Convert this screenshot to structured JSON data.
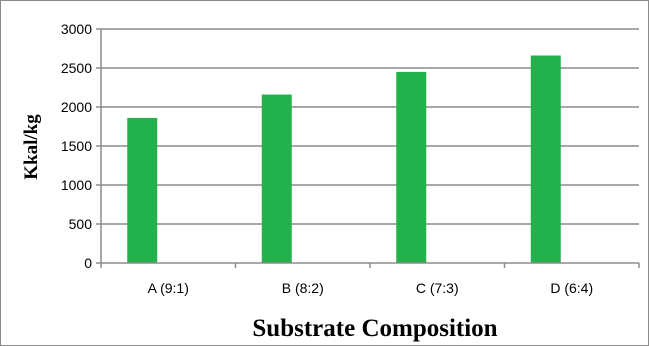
{
  "chart_data": {
    "type": "bar",
    "categories": [
      "A (9:1)",
      "B (8:2)",
      "C (7:3)",
      "D (6:4)"
    ],
    "values": [
      1860,
      2160,
      2450,
      2660
    ],
    "xlabel": "Substrate Composition",
    "ylabel": "Kkal/kg",
    "ylim": [
      0,
      3000
    ],
    "yticks": [
      0,
      500,
      1000,
      1500,
      2000,
      2500,
      3000
    ],
    "grid": true,
    "legend": "none",
    "bar_color": "#22b14c",
    "grid_color": "#8c8c8c"
  }
}
